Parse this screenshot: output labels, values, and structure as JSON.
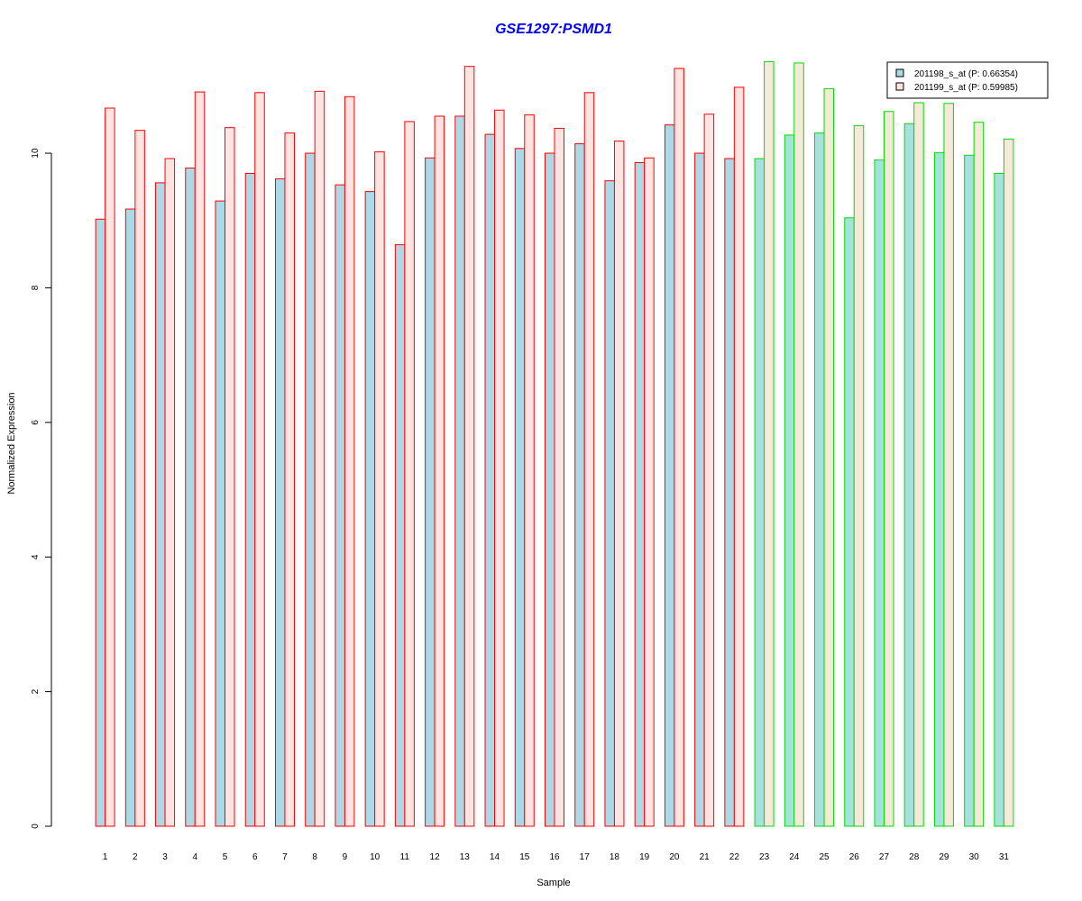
{
  "chart_data": {
    "type": "bar",
    "title": "GSE1297:PSMD1",
    "xlabel": "Sample",
    "ylabel": "Normalized Expression",
    "ylim": [
      0,
      11.5
    ],
    "yticks": [
      "0",
      "2",
      "4",
      "6",
      "8",
      "10"
    ],
    "grid": false,
    "legend_position": "top-right",
    "categories": [
      "1",
      "2",
      "3",
      "4",
      "5",
      "6",
      "7",
      "8",
      "9",
      "10",
      "11",
      "12",
      "13",
      "14",
      "15",
      "16",
      "17",
      "18",
      "19",
      "20",
      "21",
      "22",
      "23",
      "24",
      "25",
      "26",
      "27",
      "28",
      "29",
      "30",
      "31"
    ],
    "series": [
      {
        "name": "201198_s_at (P: 0.66354)",
        "values": [
          9.02,
          9.17,
          9.56,
          9.78,
          9.29,
          9.7,
          9.62,
          10.0,
          9.53,
          9.43,
          8.64,
          9.93,
          10.55,
          10.28,
          10.07,
          10.0,
          10.14,
          9.59,
          9.86,
          10.42,
          10.0,
          9.92,
          9.92,
          10.27,
          10.3,
          9.04,
          9.9,
          10.44,
          10.01,
          9.97,
          9.7
        ]
      },
      {
        "name": "201199_s_at (P: 0.59985)",
        "values": [
          10.67,
          10.34,
          9.92,
          10.91,
          10.38,
          10.9,
          10.3,
          10.92,
          10.84,
          10.02,
          10.47,
          10.55,
          11.29,
          10.64,
          10.57,
          10.37,
          10.9,
          10.18,
          9.93,
          11.26,
          10.58,
          10.98,
          11.36,
          11.34,
          10.96,
          10.41,
          10.62,
          10.75,
          10.74,
          10.46,
          10.21
        ]
      }
    ],
    "group_split_index": 22,
    "colors": {
      "title": "#0000ff",
      "series1_fill": "#add8e6",
      "series2_fill_group1": "#ffe4e1",
      "series2_fill_group2": "#f5ead8",
      "series1_fill_group2": "#a6e2dc",
      "border_group1": "#ff0000",
      "border_group2": "#00dd00",
      "axis": "#000000",
      "legend_swatch1": "#add8e6",
      "legend_swatch2": "#ffe4e1"
    }
  }
}
